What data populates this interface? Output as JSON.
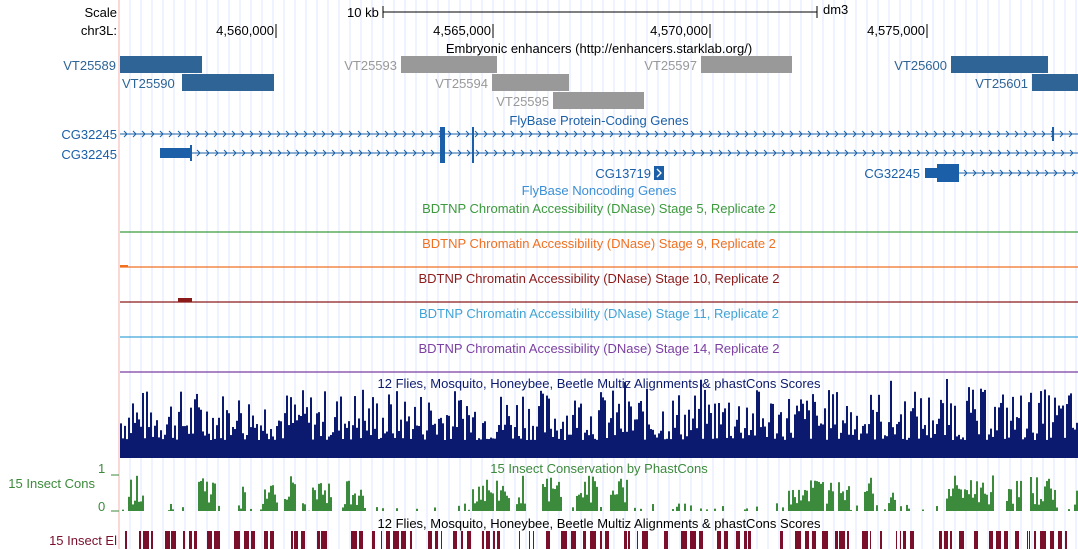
{
  "ruler": {
    "scale_label": "Scale",
    "chrom_label": "chr3L:",
    "scale_bar_label": "10 kb",
    "assembly": "dm3",
    "positions": [
      "4,560,000",
      "4,565,000",
      "4,570,000",
      "4,575,000"
    ]
  },
  "enhancers": {
    "title": "Embryonic enhancers (http://enhancers.starklab.org/)",
    "items": [
      {
        "name": "VT25589",
        "style": "dark"
      },
      {
        "name": "VT25590",
        "style": "dark"
      },
      {
        "name": "VT25593",
        "style": "gray"
      },
      {
        "name": "VT25594",
        "style": "gray"
      },
      {
        "name": "VT25595",
        "style": "gray"
      },
      {
        "name": "VT25597",
        "style": "gray"
      },
      {
        "name": "VT25600",
        "style": "dark"
      },
      {
        "name": "VT25601",
        "style": "dark"
      }
    ]
  },
  "genes": {
    "coding_title": "FlyBase Protein-Coding Genes",
    "noncoding_title": "FlyBase Noncoding Genes",
    "coding_side_labels": [
      "CG32245",
      "CG32245"
    ],
    "noncoding_items": [
      "CG13719",
      "CG32245"
    ]
  },
  "dnase_tracks": [
    {
      "title": "BDTNP Chromatin Accessibility (DNase) Stage 5, Replicate 2",
      "color": "#3c9a3c"
    },
    {
      "title": "BDTNP Chromatin Accessibility (DNase) Stage 9, Replicate 2",
      "color": "#f07020"
    },
    {
      "title": "BDTNP Chromatin Accessibility (DNase) Stage 10, Replicate 2",
      "color": "#8b1a1a"
    },
    {
      "title": "BDTNP Chromatin Accessibility (DNase) Stage 11, Replicate 2",
      "color": "#3fa3d6"
    },
    {
      "title": "BDTNP Chromatin Accessibility (DNase) Stage 14, Replicate 2",
      "color": "#7b3fa0"
    }
  ],
  "conservation": {
    "multiz_title": "12 Flies, Mosquito, Honeybee, Beetle Multiz Alignments & phastCons Scores",
    "phastcons_title": "15 Insect Conservation by PhastCons",
    "phastcons_side_label": "15 Insect Cons",
    "axis_max": "1",
    "axis_min": "0",
    "elements_title": "12 Flies, Mosquito, Honeybee, Beetle Multiz Alignments & phastCons Scores",
    "elements_side_label": "15 Insect El"
  },
  "colors": {
    "gene": "#1a5fa8",
    "enhancer_dark": "#2e6496",
    "enhancer_gray": "#999999",
    "multiz": "#0b1a6e",
    "phastcons": "#3c8a3c",
    "elements": "#7a0f2c",
    "side_border": "#f4b0b0"
  }
}
